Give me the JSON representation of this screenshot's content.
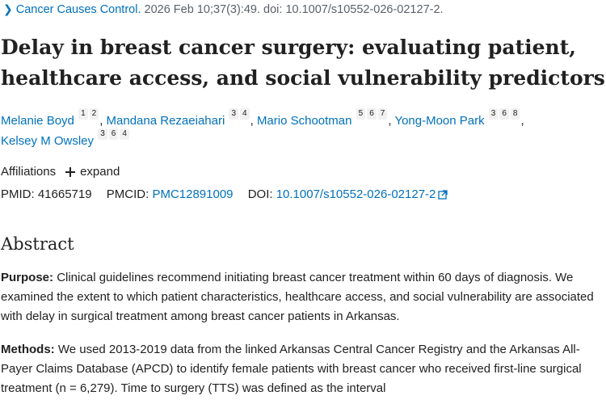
{
  "citation": {
    "journal": "Cancer Causes Control.",
    "details": "2026 Feb 10;37(3):49. doi: 10.1007/s10552-026-02127-2."
  },
  "title": "Delay in breast cancer surgery: evaluating patient, healthcare access, and social vulnerability predictors",
  "authors": [
    {
      "name": "Melanie Boyd",
      "affils": [
        "1",
        "2"
      ]
    },
    {
      "name": "Mandana Rezaeiahari",
      "affils": [
        "3",
        "4"
      ]
    },
    {
      "name": "Mario Schootman",
      "affils": [
        "5",
        "6",
        "7"
      ]
    },
    {
      "name": "Yong-Moon Park",
      "affils": [
        "3",
        "6",
        "8"
      ]
    },
    {
      "name": "Kelsey M Owsley",
      "affils": [
        "3",
        "6",
        "4"
      ]
    }
  ],
  "affiliations": {
    "label": "Affiliations",
    "expand_label": "expand"
  },
  "ids": {
    "pmid_label": "PMID:",
    "pmid": "41665719",
    "pmcid_label": "PMCID:",
    "pmcid": "PMC12891009",
    "doi_label": "DOI:",
    "doi": "10.1007/s10552-026-02127-2"
  },
  "abstract": {
    "heading": "Abstract",
    "purpose_label": "Purpose:",
    "purpose_text": "Clinical guidelines recommend initiating breast cancer treatment within 60 days of diagnosis. We examined the extent to which patient characteristics, healthcare access, and social vulnerability are associated with delay in surgical treatment among breast cancer patients in Arkansas.",
    "methods_label": "Methods:",
    "methods_text": "We used 2013-2019 data from the linked Arkansas Central Cancer Registry and the Arkansas All-Payer Claims Database (APCD) to identify female patients with breast cancer who received first-line surgical treatment (n = 6,279). Time to surgery (TTS) was defined as the interval"
  },
  "icons": {
    "citation_chevron": "chevron-right-icon",
    "expand": "plus-icon",
    "doi_external": "external-link-icon"
  },
  "colors": {
    "link": "#0071bc",
    "text": "#212121",
    "muted": "#5b616b"
  }
}
